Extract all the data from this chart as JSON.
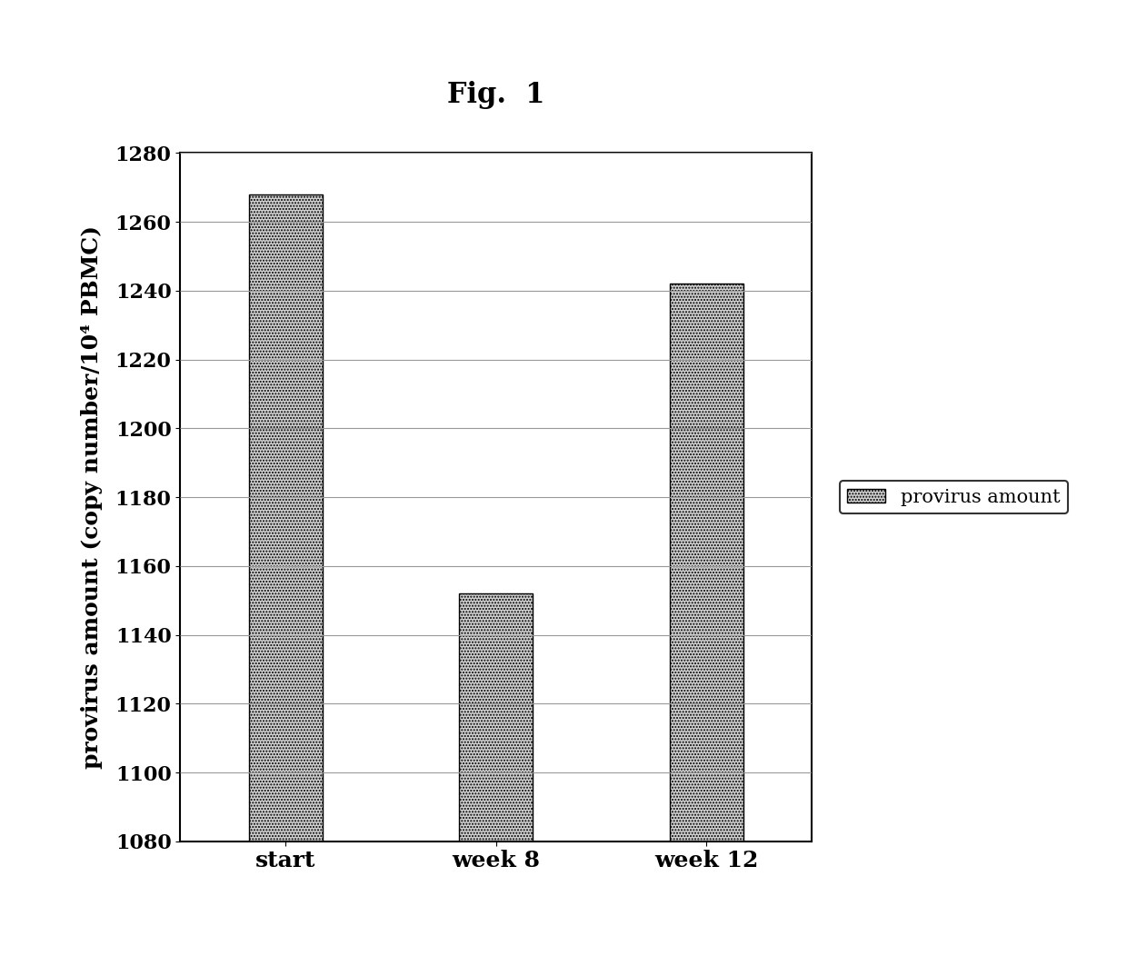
{
  "title": "Fig.  1",
  "categories": [
    "start",
    "week 8",
    "week 12"
  ],
  "values": [
    1268,
    1152,
    1242
  ],
  "ylim": [
    1080,
    1280
  ],
  "yticks": [
    1080,
    1100,
    1120,
    1140,
    1160,
    1180,
    1200,
    1220,
    1240,
    1260,
    1280
  ],
  "ylabel": "provirus amount (copy number/10⁴ PBMC)",
  "bar_color": "#d0d0d0",
  "bar_hatch": ".....",
  "bar_edgecolor": "#000000",
  "legend_label": "provirus amount",
  "background_color": "#ffffff",
  "title_fontsize": 22,
  "axis_fontsize": 18,
  "tick_fontsize": 16,
  "legend_fontsize": 15,
  "bar_width": 0.35
}
